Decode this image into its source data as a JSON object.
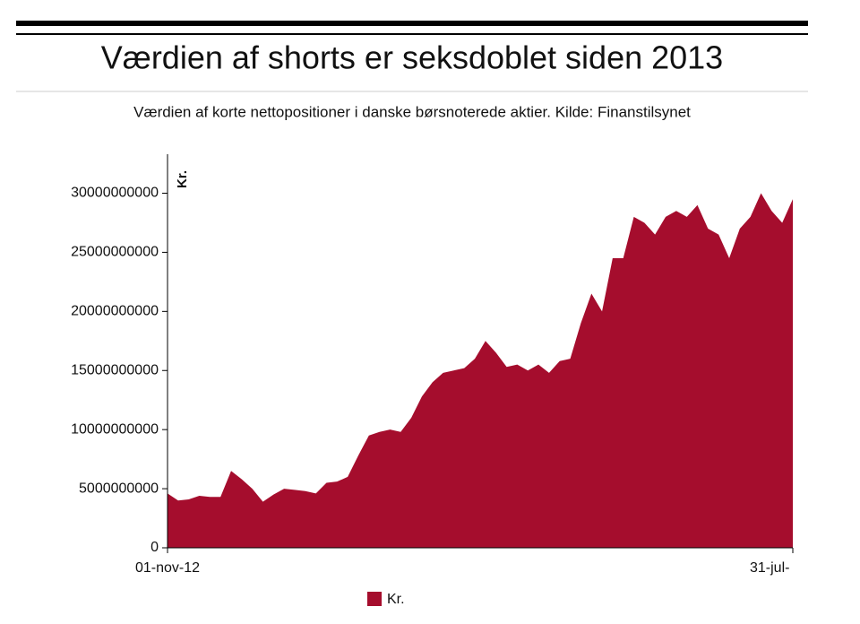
{
  "chart_data": {
    "type": "area",
    "title": "Værdien af shorts er seksdoblet siden 2013",
    "subtitle": "Værdien af korte nettopositioner i danske børsnoterede aktier. Kilde: Finanstilsynet",
    "y_label": "Kr.",
    "categories": [
      "01-nov-12",
      null,
      null,
      null,
      null,
      null,
      null,
      null,
      null,
      null,
      null,
      null,
      null,
      null,
      null,
      null,
      null,
      null,
      null,
      null,
      null,
      null,
      null,
      null,
      null,
      null,
      null,
      null,
      null,
      null,
      null,
      null,
      null,
      null,
      null,
      null,
      null,
      null,
      null,
      null,
      null,
      null,
      null,
      null,
      null,
      null,
      null,
      null,
      null,
      null,
      null,
      null,
      null,
      null,
      null,
      null,
      null,
      null,
      null,
      "31-jul-"
    ],
    "series": [
      {
        "name": "Kr.",
        "color": "#a50d2d",
        "values": [
          4600000000,
          4000000000,
          4100000000,
          4400000000,
          4300000000,
          4300000000,
          6500000000,
          5800000000,
          5000000000,
          3900000000,
          4500000000,
          5000000000,
          4900000000,
          4800000000,
          4600000000,
          5500000000,
          5600000000,
          6000000000,
          7800000000,
          9500000000,
          9800000000,
          10000000000,
          9800000000,
          11000000000,
          12800000000,
          14000000000,
          14800000000,
          15000000000,
          15200000000,
          16000000000,
          17500000000,
          16500000000,
          15300000000,
          15500000000,
          15000000000,
          15500000000,
          14800000000,
          15800000000,
          16000000000,
          19000000000,
          21500000000,
          20000000000,
          24500000000,
          24500000000,
          28000000000,
          27500000000,
          26500000000,
          28000000000,
          28500000000,
          28000000000,
          29000000000,
          27000000000,
          26500000000,
          24500000000,
          27000000000,
          28000000000,
          30000000000,
          28500000000,
          27500000000,
          29500000000
        ]
      }
    ],
    "ylim": [
      0,
      33300000000
    ],
    "yticks": [
      0,
      5000000000,
      10000000000,
      15000000000,
      20000000000,
      25000000000,
      30000000000
    ],
    "legend": "bottom"
  }
}
